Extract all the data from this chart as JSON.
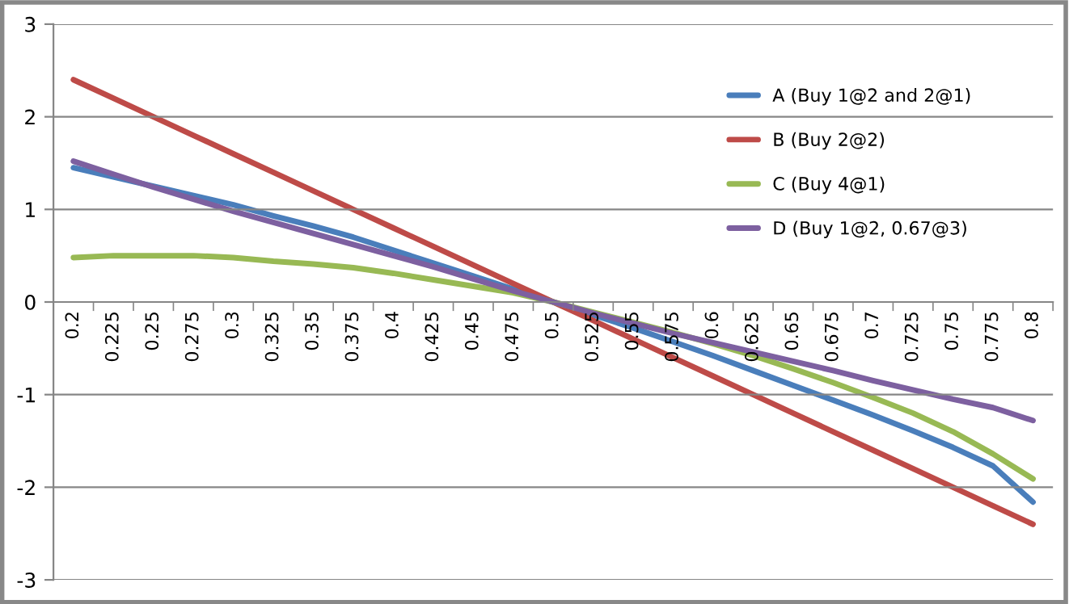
{
  "chart_data": {
    "type": "line",
    "categories": [
      "0.2",
      "0.225",
      "0.25",
      "0.275",
      "0.3",
      "0.325",
      "0.35",
      "0.375",
      "0.4",
      "0.425",
      "0.45",
      "0.475",
      "0.5",
      "0.525",
      "0.55",
      "0.575",
      "0.6",
      "0.625",
      "0.65",
      "0.675",
      "0.7",
      "0.725",
      "0.75",
      "0.775",
      "0.8"
    ],
    "series": [
      {
        "name": "A (Buy 1@2 and 2@1)",
        "color": "#4a7ebb",
        "values": [
          1.45,
          1.35,
          1.25,
          1.15,
          1.05,
          0.93,
          0.82,
          0.7,
          0.56,
          0.42,
          0.28,
          0.14,
          0,
          -0.14,
          -0.28,
          -0.43,
          -0.58,
          -0.74,
          -0.9,
          -1.06,
          -1.22,
          -1.39,
          -1.57,
          -1.77,
          -2.16
        ]
      },
      {
        "name": "B (Buy 2@2)",
        "color": "#be4b48",
        "values": [
          2.4,
          2.2,
          2.0,
          1.8,
          1.6,
          1.4,
          1.2,
          1.0,
          0.8,
          0.6,
          0.4,
          0.2,
          0,
          -0.2,
          -0.4,
          -0.6,
          -0.8,
          -1.0,
          -1.2,
          -1.4,
          -1.6,
          -1.8,
          -2.0,
          -2.2,
          -2.4
        ]
      },
      {
        "name": "C (Buy 4@1)",
        "color": "#98b954",
        "values": [
          0.48,
          0.5,
          0.5,
          0.5,
          0.48,
          0.44,
          0.41,
          0.37,
          0.31,
          0.24,
          0.17,
          0.1,
          0,
          -0.11,
          -0.22,
          -0.33,
          -0.45,
          -0.58,
          -0.72,
          -0.87,
          -1.03,
          -1.2,
          -1.4,
          -1.64,
          -1.91
        ]
      },
      {
        "name": "D (Buy 1@2, 0.67@3)",
        "color": "#7d60a0",
        "values": [
          1.52,
          1.38,
          1.24,
          1.11,
          0.98,
          0.86,
          0.74,
          0.62,
          0.5,
          0.38,
          0.25,
          0.12,
          0,
          -0.12,
          -0.23,
          -0.34,
          -0.44,
          -0.54,
          -0.64,
          -0.74,
          -0.85,
          -0.95,
          -1.05,
          -1.14,
          -1.28
        ]
      }
    ],
    "ylim": [
      -3,
      3
    ],
    "yticks": [
      -3,
      -2,
      -1,
      0,
      1,
      2,
      3
    ],
    "grid": "y",
    "legend": "right",
    "marker": "none",
    "line_style": "solid"
  }
}
